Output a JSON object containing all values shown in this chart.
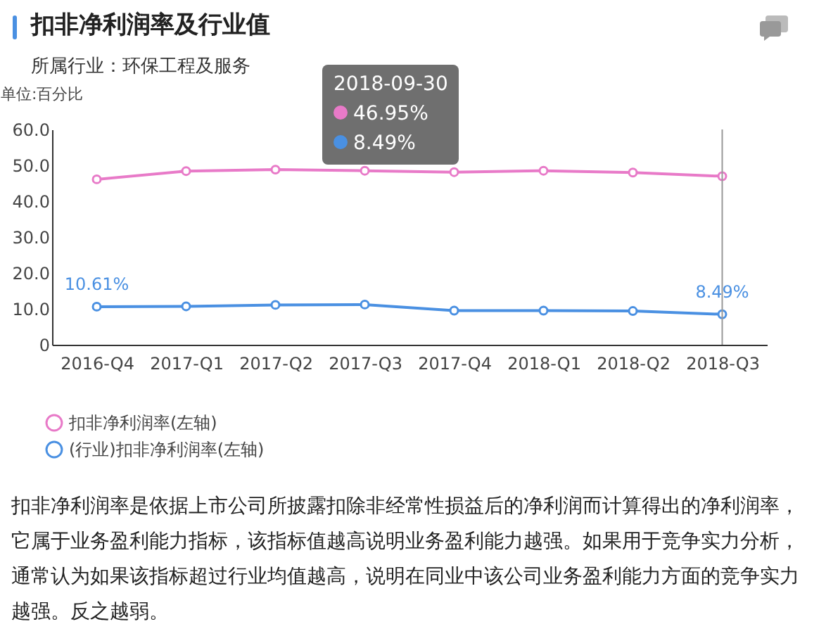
{
  "chart_data": {
    "type": "line",
    "title": "扣非净利润率及行业值",
    "subtitle": "所属行业：环保工程及服务",
    "ylabel": "单位:百分比",
    "categories": [
      "2016-Q4",
      "2017-Q1",
      "2017-Q2",
      "2017-Q3",
      "2017-Q4",
      "2018-Q1",
      "2018-Q2",
      "2018-Q3"
    ],
    "series": [
      {
        "name": "扣非净利润率(左轴)",
        "color": "#e87ac8",
        "values": [
          46.1,
          48.4,
          48.8,
          48.5,
          48.1,
          48.5,
          48.0,
          46.95
        ]
      },
      {
        "name": "(行业)扣非净利润率(左轴)",
        "color": "#4a90e2",
        "values": [
          10.61,
          10.7,
          11.1,
          11.2,
          9.5,
          9.5,
          9.4,
          8.49
        ],
        "value_labels": [
          "10.61%",
          null,
          null,
          null,
          null,
          null,
          null,
          "8.49%"
        ]
      }
    ],
    "ylim": [
      0,
      60
    ],
    "yticks": [
      {
        "value": 0,
        "label": "0"
      },
      {
        "value": 10,
        "label": "10.0"
      },
      {
        "value": 20,
        "label": "20.0"
      },
      {
        "value": 30,
        "label": "30.0"
      },
      {
        "value": 40,
        "label": "40.0"
      },
      {
        "value": 50,
        "label": "50.0"
      },
      {
        "value": 60,
        "label": "60.0"
      }
    ],
    "ref_lines": [
      {
        "axis": "x",
        "value": "2018-Q3",
        "color": "#999999"
      }
    ],
    "annotations": [
      "2018-09-30",
      "46.95%",
      "8.49%",
      "扣非净利润率是依据上市公司所披露扣除非经常性损益后的净利润而计算得出的净利润率，它属于业务盈利能力指标，该指标值越高说明业务盈利能力越强。如果用于竞争实力分析，通常认为如果该指标超过行业均值越高，说明在同业中该公司业务盈利能力方面的竞争实力越强。反之越弱。"
    ],
    "legend": "bottom left",
    "marker": "circle",
    "line_style": "solid",
    "grid": false
  }
}
